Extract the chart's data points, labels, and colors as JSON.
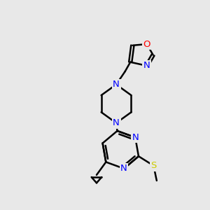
{
  "background_color": "#e8e8e8",
  "bond_color": "#000000",
  "bond_width": 1.8,
  "atom_colors": {
    "N": "#0000ff",
    "O": "#ff0000",
    "S": "#cccc00",
    "C": "#000000"
  },
  "figsize": [
    3.0,
    3.0
  ],
  "dpi": 100,
  "xlim": [
    0,
    10
  ],
  "ylim": [
    0,
    10
  ]
}
